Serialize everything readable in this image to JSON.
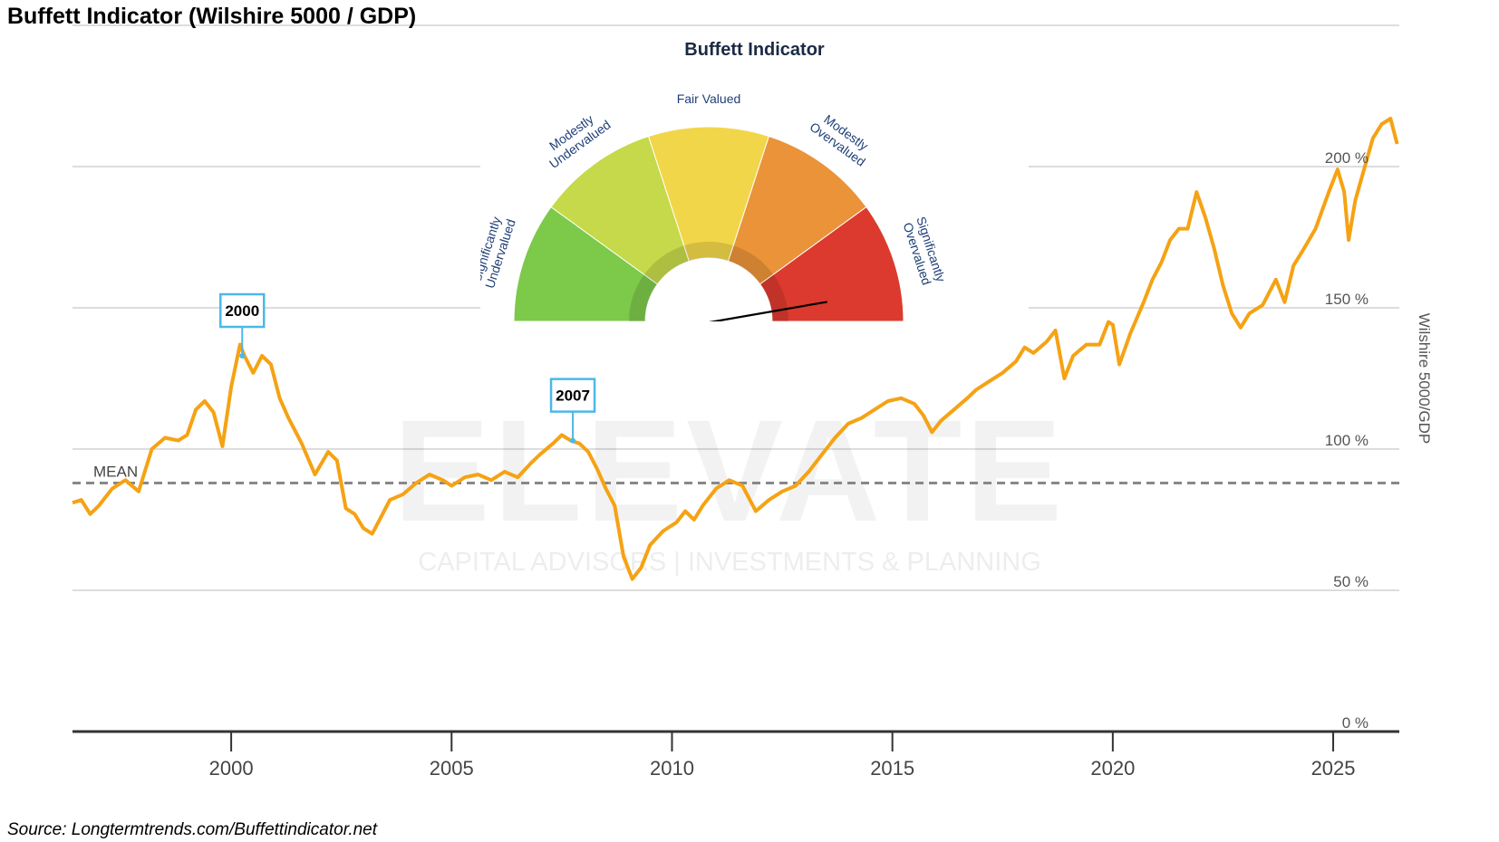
{
  "title": "Buffett Indicator (Wilshire 5000 / GDP)",
  "source": "Source: Longtermtrends.com/Buffettindicator.net",
  "watermark": {
    "main": "ELEVATE",
    "sub": "CAPITAL ADVISORS | INVESTMENTS & PLANNING"
  },
  "colors": {
    "line": "#f5a214",
    "grid": "#dddddd",
    "mean": "#888888",
    "callout": "#4db8e8",
    "gauge_sig_under": "#7dc94a",
    "gauge_mod_under": "#c6d94a",
    "gauge_fair": "#f2d64a",
    "gauge_mod_over": "#ea9338",
    "gauge_sig_over": "#dc3a2e"
  },
  "chart_data": {
    "type": "line",
    "title": "Buffett Indicator (Wilshire 5000 / GDP)",
    "ylabel": "Wilshire 5000/GDP",
    "xlabel": "",
    "xlim": [
      1996.4,
      2026.5
    ],
    "ylim": [
      0,
      250
    ],
    "grid": true,
    "x_ticks": [
      2000,
      2005,
      2010,
      2015,
      2020,
      2025
    ],
    "x_tick_labels": [
      "2000",
      "2005",
      "2010",
      "2015",
      "2020",
      "2025"
    ],
    "y_ticks": [
      0,
      50,
      100,
      150,
      200
    ],
    "y_tick_labels": [
      "0 %",
      "50 %",
      "100 %",
      "150 %",
      "200 %"
    ],
    "mean": {
      "label": "MEAN",
      "value": 88
    },
    "annotations": [
      {
        "label": "2000",
        "x": 2000.25,
        "y": 133
      },
      {
        "label": "2007",
        "x": 2007.75,
        "y": 103
      }
    ],
    "series": [
      {
        "values": [
          [
            1996.4,
            81
          ],
          [
            1996.6,
            82
          ],
          [
            1996.8,
            77
          ],
          [
            1997.0,
            80
          ],
          [
            1997.3,
            86
          ],
          [
            1997.6,
            89
          ],
          [
            1997.9,
            85
          ],
          [
            1998.2,
            100
          ],
          [
            1998.5,
            104
          ],
          [
            1998.8,
            103
          ],
          [
            1999.0,
            105
          ],
          [
            1999.2,
            114
          ],
          [
            1999.4,
            117
          ],
          [
            1999.6,
            113
          ],
          [
            1999.8,
            101
          ],
          [
            2000.0,
            122
          ],
          [
            2000.2,
            137
          ],
          [
            2000.3,
            133
          ],
          [
            2000.5,
            127
          ],
          [
            2000.7,
            133
          ],
          [
            2000.9,
            130
          ],
          [
            2001.1,
            118
          ],
          [
            2001.3,
            111
          ],
          [
            2001.6,
            102
          ],
          [
            2001.9,
            91
          ],
          [
            2002.2,
            99
          ],
          [
            2002.4,
            96
          ],
          [
            2002.6,
            79
          ],
          [
            2002.8,
            77
          ],
          [
            2003.0,
            72
          ],
          [
            2003.2,
            70
          ],
          [
            2003.4,
            76
          ],
          [
            2003.6,
            82
          ],
          [
            2003.9,
            84
          ],
          [
            2004.2,
            88
          ],
          [
            2004.5,
            91
          ],
          [
            2004.8,
            89
          ],
          [
            2005.0,
            87
          ],
          [
            2005.3,
            90
          ],
          [
            2005.6,
            91
          ],
          [
            2005.9,
            89
          ],
          [
            2006.2,
            92
          ],
          [
            2006.5,
            90
          ],
          [
            2006.8,
            95
          ],
          [
            2007.0,
            98
          ],
          [
            2007.3,
            102
          ],
          [
            2007.5,
            105
          ],
          [
            2007.7,
            103
          ],
          [
            2007.9,
            102
          ],
          [
            2008.1,
            99
          ],
          [
            2008.3,
            93
          ],
          [
            2008.5,
            86
          ],
          [
            2008.7,
            80
          ],
          [
            2008.9,
            62
          ],
          [
            2009.1,
            54
          ],
          [
            2009.3,
            58
          ],
          [
            2009.5,
            66
          ],
          [
            2009.8,
            71
          ],
          [
            2010.1,
            74
          ],
          [
            2010.3,
            78
          ],
          [
            2010.5,
            75
          ],
          [
            2010.7,
            80
          ],
          [
            2011.0,
            86
          ],
          [
            2011.3,
            89
          ],
          [
            2011.6,
            87
          ],
          [
            2011.9,
            78
          ],
          [
            2012.2,
            82
          ],
          [
            2012.5,
            85
          ],
          [
            2012.8,
            87
          ],
          [
            2013.1,
            92
          ],
          [
            2013.4,
            98
          ],
          [
            2013.7,
            104
          ],
          [
            2014.0,
            109
          ],
          [
            2014.3,
            111
          ],
          [
            2014.6,
            114
          ],
          [
            2014.9,
            117
          ],
          [
            2015.2,
            118
          ],
          [
            2015.5,
            116
          ],
          [
            2015.7,
            112
          ],
          [
            2015.9,
            106
          ],
          [
            2016.1,
            110
          ],
          [
            2016.4,
            114
          ],
          [
            2016.7,
            118
          ],
          [
            2016.9,
            121
          ],
          [
            2017.2,
            124
          ],
          [
            2017.5,
            127
          ],
          [
            2017.8,
            131
          ],
          [
            2018.0,
            136
          ],
          [
            2018.2,
            134
          ],
          [
            2018.5,
            138
          ],
          [
            2018.7,
            142
          ],
          [
            2018.9,
            125
          ],
          [
            2019.1,
            133
          ],
          [
            2019.4,
            137
          ],
          [
            2019.7,
            137
          ],
          [
            2019.9,
            145
          ],
          [
            2020.0,
            144
          ],
          [
            2020.15,
            130
          ],
          [
            2020.4,
            141
          ],
          [
            2020.7,
            152
          ],
          [
            2020.9,
            160
          ],
          [
            2021.1,
            166
          ],
          [
            2021.3,
            174
          ],
          [
            2021.5,
            178
          ],
          [
            2021.7,
            178
          ],
          [
            2021.9,
            191
          ],
          [
            2022.1,
            182
          ],
          [
            2022.3,
            171
          ],
          [
            2022.5,
            158
          ],
          [
            2022.7,
            148
          ],
          [
            2022.9,
            143
          ],
          [
            2023.1,
            148
          ],
          [
            2023.4,
            151
          ],
          [
            2023.7,
            160
          ],
          [
            2023.9,
            152
          ],
          [
            2024.1,
            165
          ],
          [
            2024.3,
            170
          ],
          [
            2024.6,
            178
          ],
          [
            2024.9,
            191
          ],
          [
            2025.1,
            199
          ],
          [
            2025.25,
            191
          ],
          [
            2025.35,
            174
          ],
          [
            2025.5,
            188
          ],
          [
            2025.7,
            199
          ],
          [
            2025.9,
            210
          ],
          [
            2026.1,
            215
          ],
          [
            2026.3,
            217
          ],
          [
            2026.45,
            208
          ]
        ]
      }
    ]
  },
  "gauge": {
    "title": "Buffett Indicator",
    "segments": [
      {
        "label": "Significantly Undervalued",
        "lines": [
          "Significantly",
          "Undervalued"
        ]
      },
      {
        "label": "Modestly Undervalued",
        "lines": [
          "Modestly",
          "Undervalued"
        ]
      },
      {
        "label": "Fair Valued",
        "lines": [
          "Fair Valued"
        ]
      },
      {
        "label": "Modestly Overvalued",
        "lines": [
          "Modestly",
          "Overvalued"
        ]
      },
      {
        "label": "Significantly Overvalued",
        "lines": [
          "Significantly",
          "Overvalued"
        ]
      }
    ],
    "needle_fraction": 0.92
  }
}
